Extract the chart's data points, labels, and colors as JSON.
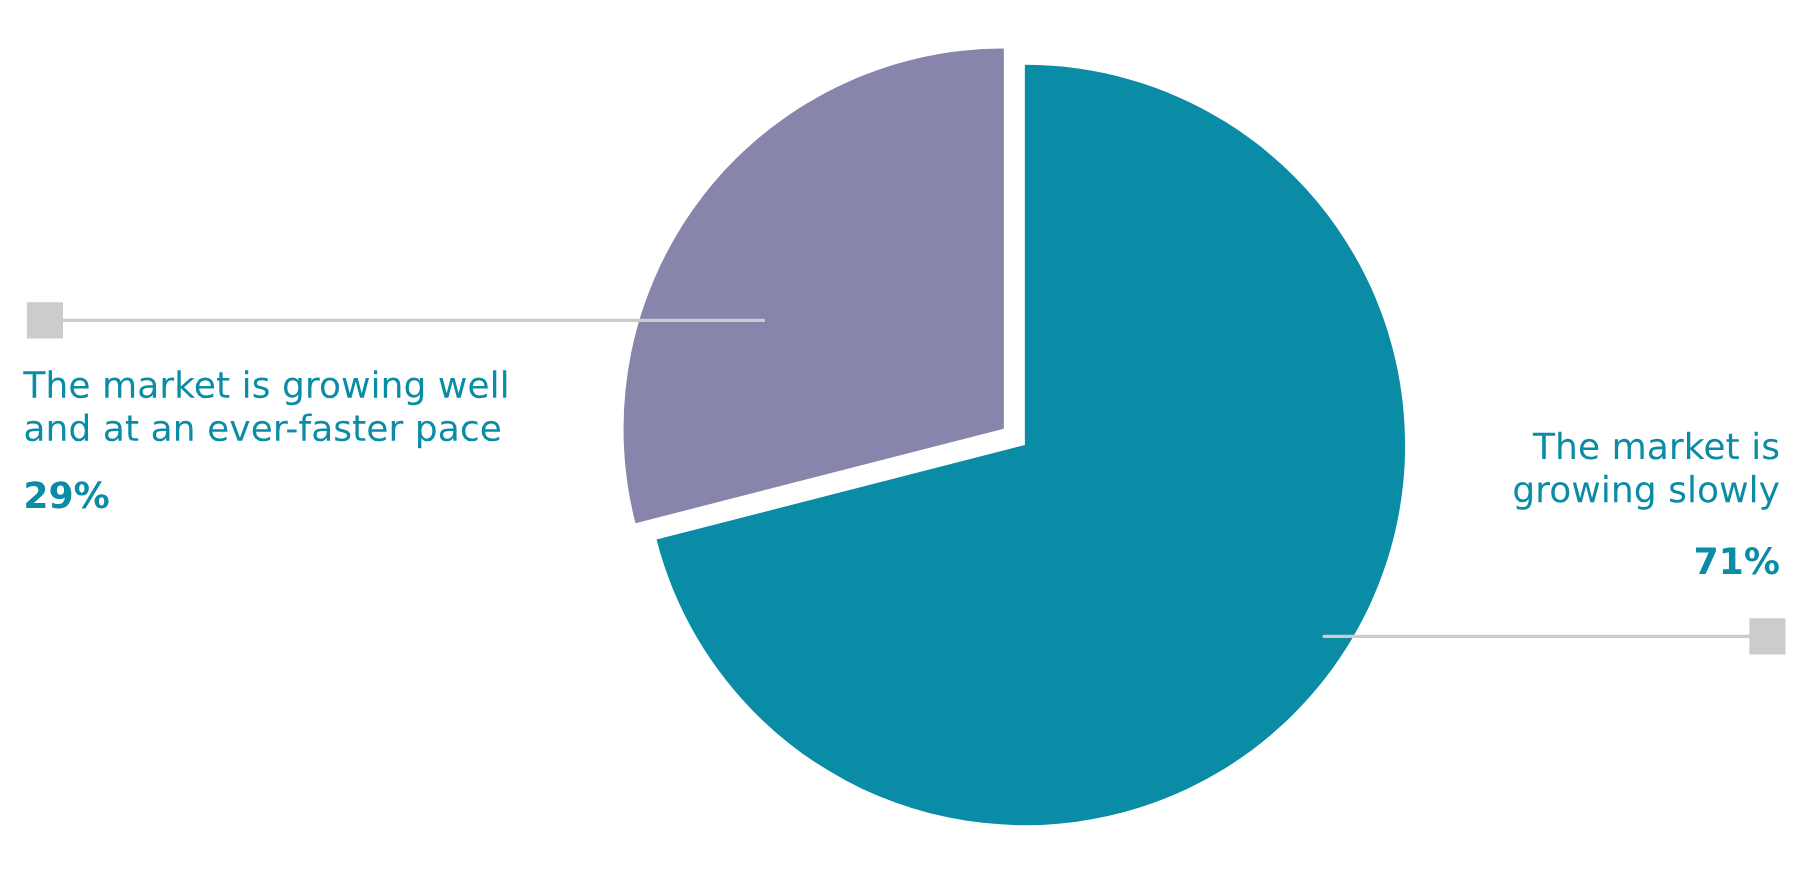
{
  "chart_data": {
    "type": "pie",
    "categories": [
      "The market is\ngrowing slowly",
      "The market is growing well\nand at an ever-faster pace"
    ],
    "values": [
      71,
      29
    ],
    "colors": [
      "#0b8ca6",
      "#8785ab"
    ],
    "value_labels": [
      "71%",
      "29%"
    ],
    "legend": false
  }
}
